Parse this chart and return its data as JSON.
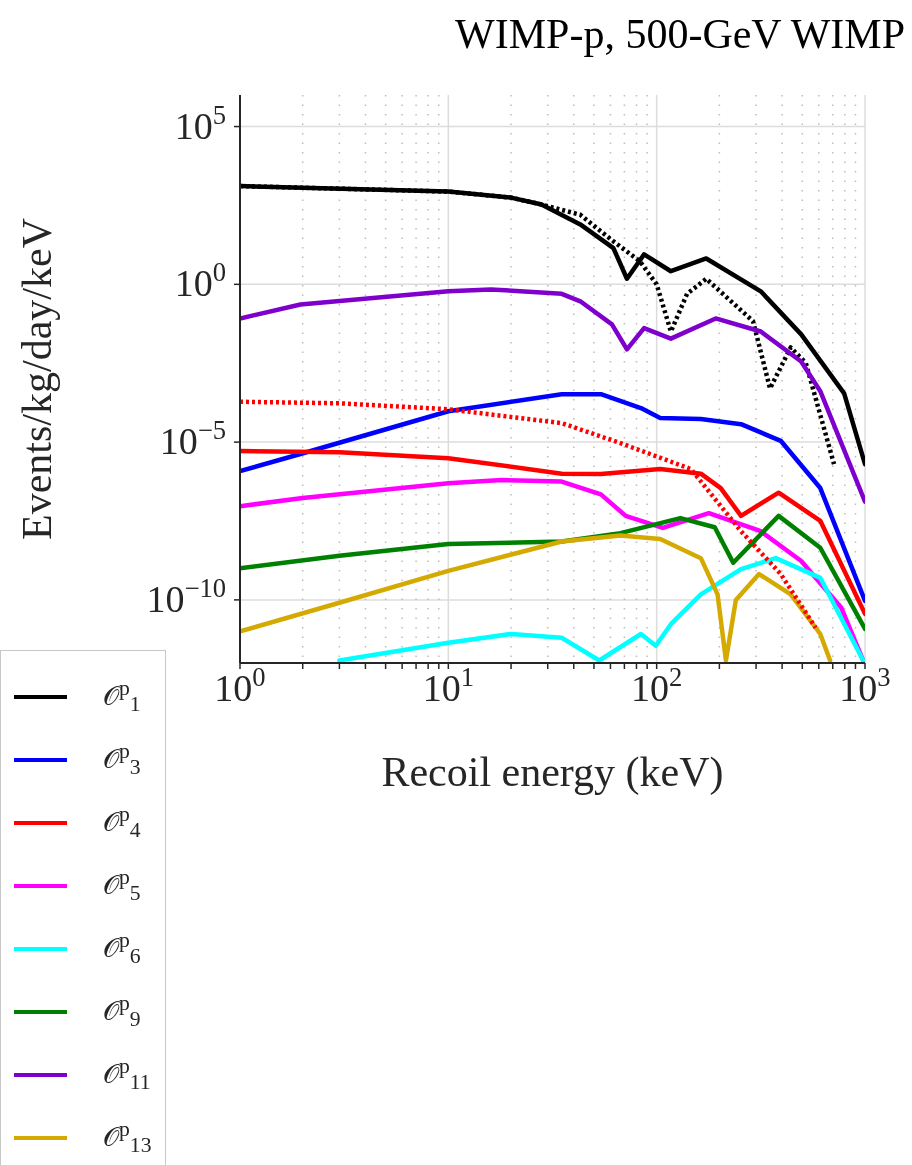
{
  "chart_data": {
    "type": "line",
    "title": "WIMP-p, 500-GeV WIMP",
    "xlabel": "Recoil energy (keV)",
    "ylabel": "Events/kg/day/keV",
    "log": "xy",
    "grid": true,
    "legend": "bottom left",
    "line_style": "solid",
    "xlim": [
      1,
      1000
    ],
    "ylim": [
      1e-12,
      1000000.0
    ],
    "xticks": [
      {
        "value": 1,
        "label": "10$^{0}$"
      },
      {
        "value": 2,
        "label": null
      },
      {
        "value": 3,
        "label": null
      },
      {
        "value": 4,
        "label": null
      },
      {
        "value": 5,
        "label": null
      },
      {
        "value": 6,
        "label": null
      },
      {
        "value": 7,
        "label": null
      },
      {
        "value": 8,
        "label": null
      },
      {
        "value": 9,
        "label": null
      },
      {
        "value": 10,
        "label": "10$^{1}$"
      },
      {
        "value": 20,
        "label": null
      },
      {
        "value": 30,
        "label": null
      },
      {
        "value": 40,
        "label": null
      },
      {
        "value": 50,
        "label": null
      },
      {
        "value": 60,
        "label": null
      },
      {
        "value": 70,
        "label": null
      },
      {
        "value": 80,
        "label": null
      },
      {
        "value": 90,
        "label": null
      },
      {
        "value": 100,
        "label": "10$^{2}$"
      },
      {
        "value": 200,
        "label": null
      },
      {
        "value": 300,
        "label": null
      },
      {
        "value": 400,
        "label": null
      },
      {
        "value": 500,
        "label": null
      },
      {
        "value": 600,
        "label": null
      },
      {
        "value": 700,
        "label": null
      },
      {
        "value": 800,
        "label": null
      },
      {
        "value": 900,
        "label": null
      },
      {
        "value": 1000,
        "label": "10$^{3}$"
      }
    ],
    "yticks": [
      {
        "value": 1e-10,
        "label": "10$^{−10}$"
      },
      {
        "value": 1e-05,
        "label": "10$^{−5}$"
      },
      {
        "value": 1,
        "label": "10$^{0}$"
      },
      {
        "value": 100000.0,
        "label": "10$^{5}$"
      }
    ],
    "series": [
      {
        "name": "𝒪$^{p}$$_{1}$",
        "color": "#000000",
        "x": [
          1,
          10,
          20,
          28,
          43,
          62,
          72,
          87,
          117,
          173,
          316,
          494,
          794,
          1000
        ],
        "values": [
          1300.0,
          870.0,
          560.0,
          340.0,
          79,
          14,
          1.5,
          8.9,
          2.6,
          6.6,
          0.6,
          0.026,
          0.00035,
          2e-06
        ]
      },
      {
        "color": "#000000",
        "line_style": "dotted",
        "x": [
          1,
          10,
          20,
          28,
          43,
          62,
          83,
          100,
          117,
          140,
          173,
          290,
          350,
          440,
          520,
          710
        ],
        "values": [
          1300.0,
          870.0,
          560.0,
          340.0,
          160.0,
          23,
          5.4,
          1,
          0.032,
          0.5,
          1.5,
          0.068,
          0.0005,
          0.01,
          0.0032,
          2e-06
        ]
      },
      {
        "name": "𝒪$^{p}$$_{3}$",
        "color": "#0000ff",
        "x": [
          1,
          1.95,
          10,
          35,
          54,
          84,
          104,
          163,
          254,
          394,
          610,
          1000
        ],
        "values": [
          1.2e-06,
          4.2e-06,
          9.5e-05,
          0.00033,
          0.00033,
          0.00012,
          5.8e-05,
          5.4e-05,
          3.7e-05,
          1.1e-05,
          3.5e-07,
          9.3e-11
        ]
      },
      {
        "name": "𝒪$^{p}$$_{4}$",
        "color": "#ff0000",
        "x": [
          1,
          3,
          10,
          35,
          54,
          104,
          163,
          203,
          254,
          385,
          610,
          1000
        ],
        "values": [
          5.2e-06,
          4.8e-06,
          3.1e-06,
          1e-06,
          9.8e-07,
          1.4e-06,
          1e-06,
          3.5e-07,
          4.6e-08,
          2.5e-07,
          3.2e-08,
          3.6e-11
        ]
      },
      {
        "name": "𝒪$^{p}$$_{5}$",
        "color": "#ff00ff",
        "x": [
          1,
          2,
          10,
          18,
          35,
          54,
          71,
          107,
          178,
          316,
          494,
          770,
          980
        ],
        "values": [
          9.3e-08,
          1.7e-07,
          5e-07,
          6.3e-07,
          5.6e-07,
          2.2e-07,
          4.6e-08,
          1.9e-08,
          5.6e-08,
          1.5e-08,
          1.7e-09,
          5.6e-11,
          1.2e-12
        ]
      },
      {
        "name": "𝒪$^{p}$$_{6}$",
        "color": "#00ffff",
        "x": [
          3,
          10,
          20,
          35,
          53,
          84,
          99,
          117,
          163,
          254,
          373,
          610,
          980
        ],
        "values": [
          1.2e-12,
          4.4e-12,
          8.3e-12,
          6.3e-12,
          1.2e-12,
          8.3e-12,
          3.5e-12,
          1.7e-11,
          1.5e-10,
          9.5e-10,
          2.1e-09,
          5e-10,
          1.2e-12
        ]
      },
      {
        "name": "𝒪$^{p}$$_{9}$",
        "color": "#008000",
        "x": [
          1,
          3,
          10,
          35,
          67,
          130,
          190,
          233,
          385,
          610,
          1000
        ],
        "values": [
          1e-09,
          2.5e-09,
          5.9e-09,
          7.1e-09,
          1.3e-08,
          3.9e-08,
          2e-08,
          1.5e-09,
          4.6e-08,
          4.5e-09,
          1.2e-11
        ]
      },
      {
        "name": "𝒪$^{p}$$_{11}$",
        "color": "#7f00cc",
        "x": [
          1,
          1.95,
          10,
          16,
          35,
          43,
          61,
          72,
          87,
          117,
          192,
          316,
          494,
          610,
          1000
        ],
        "values": [
          0.083,
          0.23,
          0.6,
          0.69,
          0.5,
          0.29,
          0.054,
          0.0087,
          0.041,
          0.019,
          0.083,
          0.032,
          0.0036,
          0.00041,
          1.3e-07
        ]
      },
      {
        "name": "𝒪$^{p}$$_{13}$",
        "color": "#d4aa00",
        "x": [
          1,
          3,
          10,
          35,
          67,
          104,
          163,
          196,
          215,
          240,
          310,
          440,
          610,
          680
        ],
        "values": [
          1e-11,
          8.1e-11,
          8.3e-10,
          7.1e-09,
          1.1e-08,
          8.5e-09,
          2.1e-09,
          1.5e-10,
          1.2e-12,
          1e-10,
          6.6e-10,
          1.5e-10,
          8.3e-12,
          1.2e-12
        ]
      },
      {
        "color": "#ff0000",
        "line_style": "dotted",
        "x": [
          1,
          3,
          10,
          22,
          35,
          67,
          146,
          254,
          394,
          580
        ],
        "values": [
          0.00019,
          0.00017,
          0.00011,
          5.8e-05,
          4e-05,
          9.3e-06,
          1.4e-06,
          1.5e-08,
          6.6e-10,
          1.3e-11
        ]
      }
    ]
  }
}
